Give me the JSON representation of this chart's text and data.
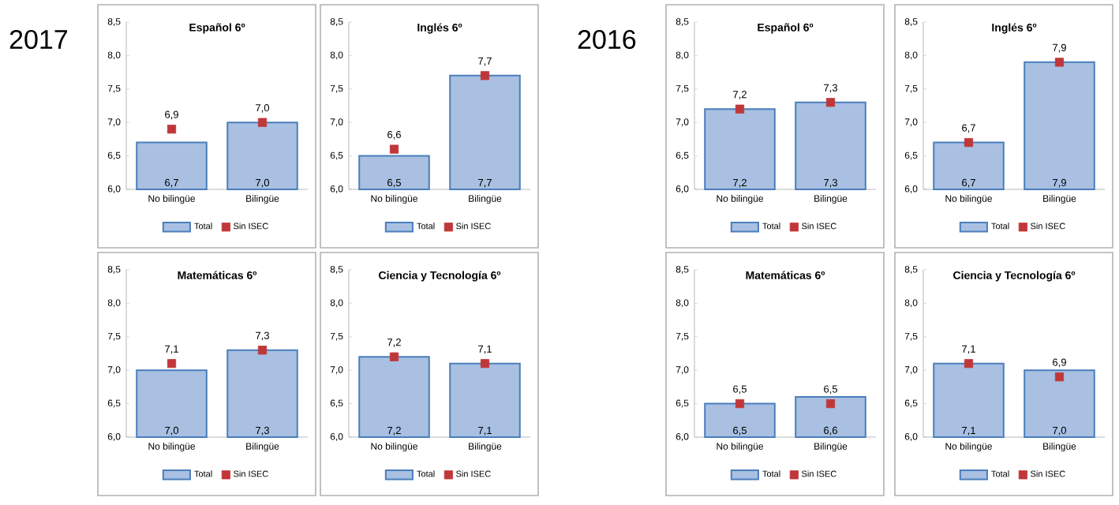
{
  "chart_data": [
    {
      "type": "bar",
      "title": "Español 6º",
      "annotations": [
        "2017"
      ],
      "categories": [
        "No bilingüe",
        "Bilingüe"
      ],
      "ylim": [
        6,
        8.5
      ],
      "yticks": [
        {
          "value": 6,
          "label": "6,0"
        },
        {
          "value": 6.5,
          "label": "6,5"
        },
        {
          "value": 7,
          "label": "7,0"
        },
        {
          "value": 7.5,
          "label": "7,5"
        },
        {
          "value": 8,
          "label": "8,0"
        },
        {
          "value": 8.5,
          "label": "8,5"
        }
      ],
      "legend": "bottom",
      "series": [
        {
          "name": "Total",
          "color": "#a9c0e2",
          "values": [
            6.7,
            7.0
          ],
          "value_labels": [
            "6,7",
            "7,0"
          ]
        },
        {
          "name": "Sin ISEC",
          "type": "scatter",
          "marker": "square",
          "color": "#c0373a",
          "values": [
            6.9,
            7.0
          ],
          "value_labels": [
            "6,9",
            "7,0"
          ]
        }
      ]
    },
    {
      "type": "bar",
      "title": "Inglés 6º",
      "categories": [
        "No bilingüe",
        "Bilingüe"
      ],
      "ylim": [
        6,
        8.5
      ],
      "yticks": [
        {
          "value": 6,
          "label": "6,0"
        },
        {
          "value": 6.5,
          "label": "6,5"
        },
        {
          "value": 7,
          "label": "7,0"
        },
        {
          "value": 7.5,
          "label": "7,5"
        },
        {
          "value": 8,
          "label": "8,0"
        },
        {
          "value": 8.5,
          "label": "8,5"
        }
      ],
      "legend": "bottom",
      "series": [
        {
          "name": "Total",
          "color": "#a9c0e2",
          "values": [
            6.5,
            7.7
          ],
          "value_labels": [
            "6,5",
            "7,7"
          ]
        },
        {
          "name": "Sin ISEC",
          "type": "scatter",
          "marker": "square",
          "color": "#c0373a",
          "values": [
            6.6,
            7.7
          ],
          "value_labels": [
            "6,6",
            "7,7"
          ]
        }
      ]
    },
    {
      "type": "bar",
      "title": "Español 6º",
      "annotations": [
        "2016"
      ],
      "categories": [
        "No bilingüe",
        "Bilingüe"
      ],
      "ylim": [
        6,
        8.5
      ],
      "yticks": [
        {
          "value": 6,
          "label": "6,0"
        },
        {
          "value": 6.5,
          "label": "6,5"
        },
        {
          "value": 7,
          "label": "7,0"
        },
        {
          "value": 7.5,
          "label": "7,5"
        },
        {
          "value": 8,
          "label": "8,0"
        },
        {
          "value": 8.5,
          "label": "8,5"
        }
      ],
      "legend": "bottom",
      "series": [
        {
          "name": "Total",
          "color": "#a9c0e2",
          "values": [
            7.2,
            7.3
          ],
          "value_labels": [
            "7,2",
            "7,3"
          ]
        },
        {
          "name": "Sin ISEC",
          "type": "scatter",
          "marker": "square",
          "color": "#c0373a",
          "values": [
            7.2,
            7.3
          ],
          "value_labels": [
            "7,2",
            "7,3"
          ]
        }
      ]
    },
    {
      "type": "bar",
      "title": "Inglés 6º",
      "categories": [
        "No bilingüe",
        "Bilingüe"
      ],
      "ylim": [
        6,
        8.5
      ],
      "yticks": [
        {
          "value": 6,
          "label": "6,0"
        },
        {
          "value": 6.5,
          "label": "6,5"
        },
        {
          "value": 7,
          "label": "7,0"
        },
        {
          "value": 7.5,
          "label": "7,5"
        },
        {
          "value": 8,
          "label": "8,0"
        },
        {
          "value": 8.5,
          "label": "8,5"
        }
      ],
      "legend": "bottom",
      "series": [
        {
          "name": "Total",
          "color": "#a9c0e2",
          "values": [
            6.7,
            7.9
          ],
          "value_labels": [
            "6,7",
            "7,9"
          ]
        },
        {
          "name": "Sin ISEC",
          "type": "scatter",
          "marker": "square",
          "color": "#c0373a",
          "values": [
            6.7,
            7.9
          ],
          "value_labels": [
            "6,7",
            "7,9"
          ]
        }
      ]
    },
    {
      "type": "bar",
      "title": "Matemáticas 6º",
      "categories": [
        "No bilingüe",
        "Bilingüe"
      ],
      "ylim": [
        6,
        8.5
      ],
      "yticks": [
        {
          "value": 6,
          "label": "6,0"
        },
        {
          "value": 6.5,
          "label": "6,5"
        },
        {
          "value": 7,
          "label": "7,0"
        },
        {
          "value": 7.5,
          "label": "7,5"
        },
        {
          "value": 8,
          "label": "8,0"
        },
        {
          "value": 8.5,
          "label": "8,5"
        }
      ],
      "legend": "bottom",
      "series": [
        {
          "name": "Total",
          "color": "#a9c0e2",
          "values": [
            7.0,
            7.3
          ],
          "value_labels": [
            "7,0",
            "7,3"
          ]
        },
        {
          "name": "Sin ISEC",
          "type": "scatter",
          "marker": "square",
          "color": "#c0373a",
          "values": [
            7.1,
            7.3
          ],
          "value_labels": [
            "7,1",
            "7,3"
          ]
        }
      ]
    },
    {
      "type": "bar",
      "title": "Ciencia y Tecnología 6º",
      "categories": [
        "No bilingüe",
        "Bilingüe"
      ],
      "ylim": [
        6,
        8.5
      ],
      "yticks": [
        {
          "value": 6,
          "label": "6,0"
        },
        {
          "value": 6.5,
          "label": "6,5"
        },
        {
          "value": 7,
          "label": "7,0"
        },
        {
          "value": 7.5,
          "label": "7,5"
        },
        {
          "value": 8,
          "label": "8,0"
        },
        {
          "value": 8.5,
          "label": "8,5"
        }
      ],
      "legend": "bottom",
      "series": [
        {
          "name": "Total",
          "color": "#a9c0e2",
          "values": [
            7.2,
            7.1
          ],
          "value_labels": [
            "7,2",
            "7,1"
          ]
        },
        {
          "name": "Sin ISEC",
          "type": "scatter",
          "marker": "square",
          "color": "#c0373a",
          "values": [
            7.2,
            7.1
          ],
          "value_labels": [
            "7,2",
            "7,1"
          ]
        }
      ]
    },
    {
      "type": "bar",
      "title": "Matemáticas 6º",
      "categories": [
        "No bilingüe",
        "Bilingüe"
      ],
      "ylim": [
        6,
        8.5
      ],
      "yticks": [
        {
          "value": 6,
          "label": "6,0"
        },
        {
          "value": 6.5,
          "label": "6,5"
        },
        {
          "value": 7,
          "label": "7,0"
        },
        {
          "value": 7.5,
          "label": "7,5"
        },
        {
          "value": 8,
          "label": "8,0"
        },
        {
          "value": 8.5,
          "label": "8,5"
        }
      ],
      "legend": "bottom",
      "series": [
        {
          "name": "Total",
          "color": "#a9c0e2",
          "values": [
            6.5,
            6.6
          ],
          "value_labels": [
            "6,5",
            "6,6"
          ]
        },
        {
          "name": "Sin ISEC",
          "type": "scatter",
          "marker": "square",
          "color": "#c0373a",
          "values": [
            6.5,
            6.5
          ],
          "value_labels": [
            "6,5",
            "6,5"
          ]
        }
      ]
    },
    {
      "type": "bar",
      "title": "Ciencia y Tecnología 6º",
      "categories": [
        "No bilingüe",
        "Bilingüe"
      ],
      "ylim": [
        6,
        8.5
      ],
      "yticks": [
        {
          "value": 6,
          "label": "6,0"
        },
        {
          "value": 6.5,
          "label": "6,5"
        },
        {
          "value": 7,
          "label": "7,0"
        },
        {
          "value": 7.5,
          "label": "7,5"
        },
        {
          "value": 8,
          "label": "8,0"
        },
        {
          "value": 8.5,
          "label": "8,5"
        }
      ],
      "legend": "bottom",
      "series": [
        {
          "name": "Total",
          "color": "#a9c0e2",
          "values": [
            7.1,
            7.0
          ],
          "value_labels": [
            "7,1",
            "7,0"
          ]
        },
        {
          "name": "Sin ISEC",
          "type": "scatter",
          "marker": "square",
          "color": "#c0373a",
          "values": [
            7.1,
            6.9
          ],
          "value_labels": [
            "7,1",
            "6,9"
          ]
        }
      ]
    }
  ]
}
